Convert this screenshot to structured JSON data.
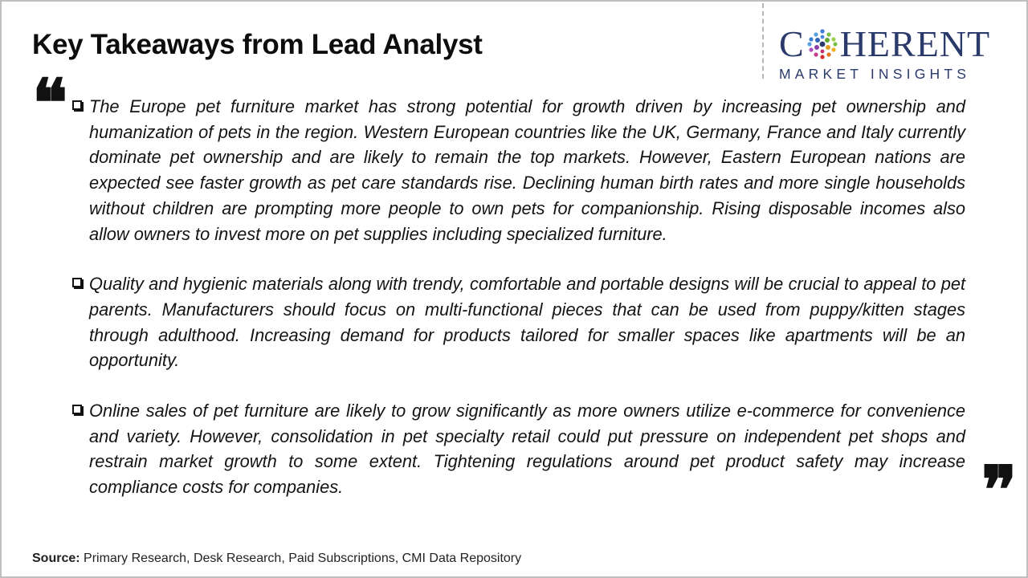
{
  "header": {
    "title": "Key Takeaways from Lead Analyst"
  },
  "logo": {
    "word_left": "C",
    "word_right": "HERENT",
    "subtitle": "MARKET INSIGHTS",
    "brand_color": "#2a3a6b"
  },
  "quotes": {
    "open": "❝",
    "close": "❞"
  },
  "bullets": [
    {
      "text": "The Europe pet furniture market has strong potential for growth driven by increasing pet ownership and humanization of pets in the region. Western European countries like the UK, Germany, France and Italy currently dominate pet ownership and are likely to remain the top markets. However, Eastern European nations are expected see faster growth as pet care standards rise. Declining human birth rates and more single households without children are prompting more people to own pets for companionship. Rising disposable incomes also allow owners to invest more on pet supplies including specialized furniture."
    },
    {
      "text": "Quality and hygienic materials along with trendy, comfortable and portable designs will be crucial to appeal to pet parents. Manufacturers should focus on multi-functional pieces that can be used from puppy/kitten stages through adulthood. Increasing demand for products tailored for smaller spaces like apartments will be an opportunity."
    },
    {
      "text": "Online sales of pet furniture are likely to grow significantly as more owners utilize e-commerce for convenience and variety. However, consolidation in pet specialty retail could put pressure on independent pet shops and restrain market growth to some extent. Tightening regulations around pet product safety may increase compliance costs for companies."
    }
  ],
  "footer": {
    "source_label": "Source:",
    "source_text": " Primary Research, Desk Research, Paid Subscriptions, CMI Data Repository"
  }
}
